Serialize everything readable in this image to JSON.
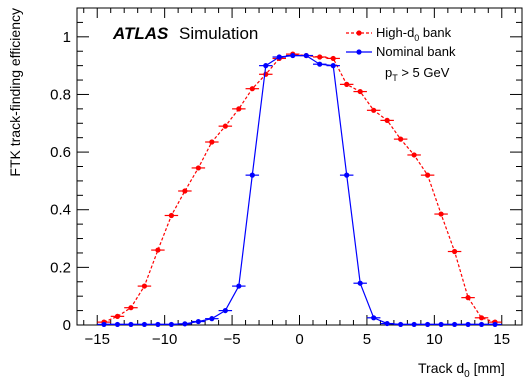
{
  "chart_data": {
    "type": "line",
    "xlabel_main": "Track d",
    "xlabel_sub": "0",
    "xlabel_unit": " [mm]",
    "ylabel": "FTK track-finding efficiency",
    "xlim": [
      -16.5,
      16.5
    ],
    "ylim": [
      0,
      1.1
    ],
    "xticks": [
      -15,
      -10,
      -5,
      0,
      5,
      10,
      15
    ],
    "xtick_labels": [
      "−15",
      "−10",
      "−5",
      "0",
      "5",
      "10",
      "15"
    ],
    "yticks": [
      0,
      0.2,
      0.4,
      0.6,
      0.8,
      1
    ],
    "ytick_labels": [
      "0",
      "0.2",
      "0.4",
      "0.6",
      "0.8",
      "1"
    ],
    "grid": false,
    "legend_position": "top-right",
    "annotation": {
      "atlas": "ATLAS",
      "simulation": "Simulation",
      "cut_main": "p",
      "cut_sub": "T",
      "cut_rest": " > 5 GeV"
    },
    "x": [
      -14.5,
      -13.5,
      -12.5,
      -11.5,
      -10.5,
      -9.5,
      -8.5,
      -7.5,
      -6.5,
      -5.5,
      -4.5,
      -3.5,
      -2.5,
      -1.5,
      -0.5,
      0.5,
      1.5,
      2.5,
      3.5,
      4.5,
      5.5,
      6.5,
      7.5,
      8.5,
      9.5,
      10.5,
      11.5,
      12.5,
      13.5,
      14.5
    ],
    "series": [
      {
        "name_main": "High-d",
        "name_sub": "0",
        "name_rest": " bank",
        "color": "#ff0000",
        "dashed": true,
        "values": [
          0.01,
          0.03,
          0.06,
          0.135,
          0.26,
          0.38,
          0.465,
          0.545,
          0.635,
          0.69,
          0.75,
          0.82,
          0.87,
          0.925,
          0.94,
          0.935,
          0.93,
          0.925,
          0.835,
          0.81,
          0.745,
          0.71,
          0.645,
          0.59,
          0.52,
          0.385,
          0.255,
          0.095,
          0.025,
          0.01
        ]
      },
      {
        "name_main": "Nominal bank",
        "name_sub": "",
        "name_rest": "",
        "color": "#0000ff",
        "dashed": false,
        "values": [
          0.002,
          0.002,
          0.002,
          0.002,
          0.002,
          0.002,
          0.004,
          0.012,
          0.022,
          0.05,
          0.135,
          0.52,
          0.9,
          0.93,
          0.935,
          0.935,
          0.905,
          0.9,
          0.52,
          0.145,
          0.025,
          0.005,
          0.002,
          0.002,
          0.002,
          0.002,
          0.002,
          0.002,
          0.002,
          0.002
        ]
      }
    ]
  }
}
